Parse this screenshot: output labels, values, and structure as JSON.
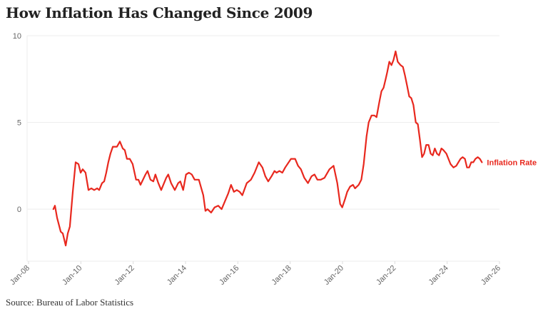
{
  "title": "How Inflation Has Changed Since 2009",
  "source": "Source: Bureau of Labor Statistics",
  "chart_data": {
    "type": "line",
    "title": "How Inflation Has Changed Since 2009",
    "xlabel": "",
    "ylabel": "",
    "ylim": [
      -3,
      10
    ],
    "xlim": [
      2008,
      2026
    ],
    "yticks": [
      {
        "v": 0,
        "label": "0"
      },
      {
        "v": 5,
        "label": "5"
      },
      {
        "v": 10,
        "label": "10"
      }
    ],
    "xticks": [
      {
        "v": 2008,
        "label": "Jan-08"
      },
      {
        "v": 2010,
        "label": "Jan-10"
      },
      {
        "v": 2012,
        "label": "Jan-12"
      },
      {
        "v": 2014,
        "label": "Jan-14"
      },
      {
        "v": 2016,
        "label": "Jan-16"
      },
      {
        "v": 2018,
        "label": "Jan-18"
      },
      {
        "v": 2020,
        "label": "Jan-20"
      },
      {
        "v": 2022,
        "label": "Jan-22"
      },
      {
        "v": 2024,
        "label": "Jan-24"
      },
      {
        "v": 2026,
        "label": "Jan-26"
      }
    ],
    "grid": true,
    "legend": "inline-right",
    "series": [
      {
        "name": "Inflation Rate",
        "color": "#e8281e",
        "x_base_year": 2008,
        "x": [
          0.95,
          1.01,
          1.09,
          1.23,
          1.31,
          1.42,
          1.5,
          1.58,
          1.69,
          1.8,
          1.91,
          1.99,
          2.07,
          2.18,
          2.29,
          2.4,
          2.51,
          2.62,
          2.7,
          2.81,
          2.89,
          2.97,
          3.05,
          3.13,
          3.22,
          3.3,
          3.38,
          3.49,
          3.6,
          3.68,
          3.76,
          3.87,
          3.98,
          4.11,
          4.2,
          4.28,
          4.47,
          4.55,
          4.66,
          4.77,
          4.85,
          4.96,
          5.07,
          5.18,
          5.26,
          5.34,
          5.45,
          5.59,
          5.72,
          5.8,
          5.91,
          6.02,
          6.13,
          6.24,
          6.35,
          6.51,
          6.68,
          6.76,
          6.84,
          6.98,
          7.11,
          7.25,
          7.38,
          7.52,
          7.63,
          7.74,
          7.85,
          7.96,
          8.07,
          8.17,
          8.34,
          8.5,
          8.64,
          8.8,
          8.94,
          9.05,
          9.16,
          9.29,
          9.4,
          9.48,
          9.59,
          9.7,
          9.81,
          10.03,
          10.19,
          10.3,
          10.41,
          10.54,
          10.68,
          10.82,
          10.93,
          11.04,
          11.17,
          11.31,
          11.5,
          11.66,
          11.8,
          11.91,
          11.99,
          12.1,
          12.18,
          12.29,
          12.4,
          12.48,
          12.62,
          12.72,
          12.81,
          12.92,
          13.0,
          13.11,
          13.22,
          13.3,
          13.41,
          13.49,
          13.57,
          13.65,
          13.71,
          13.79,
          13.87,
          13.95,
          14.03,
          14.11,
          14.22,
          14.31,
          14.39,
          14.47,
          14.55,
          14.63,
          14.71,
          14.8,
          14.88,
          14.96,
          15.04,
          15.12,
          15.2,
          15.29,
          15.37,
          15.45,
          15.53,
          15.61,
          15.69,
          15.78,
          15.86,
          15.97,
          16.05,
          16.13,
          16.24,
          16.35,
          16.43,
          16.51,
          16.59,
          16.68,
          16.76,
          16.84,
          16.92,
          17.0,
          17.08,
          17.17,
          17.25,
          17.33
        ],
        "values": [
          0.0,
          0.2,
          -0.5,
          -1.3,
          -1.4,
          -2.1,
          -1.4,
          -1.0,
          1.0,
          2.7,
          2.6,
          2.1,
          2.3,
          2.1,
          1.1,
          1.2,
          1.1,
          1.2,
          1.1,
          1.5,
          1.6,
          2.1,
          2.7,
          3.2,
          3.6,
          3.6,
          3.6,
          3.9,
          3.5,
          3.4,
          2.9,
          2.9,
          2.6,
          1.7,
          1.7,
          1.4,
          2.0,
          2.2,
          1.7,
          1.6,
          2.0,
          1.5,
          1.1,
          1.5,
          1.8,
          2.0,
          1.5,
          1.1,
          1.5,
          1.6,
          1.1,
          2.0,
          2.1,
          2.0,
          1.7,
          1.7,
          0.8,
          -0.1,
          0.0,
          -0.2,
          0.1,
          0.2,
          0.0,
          0.5,
          0.9,
          1.4,
          1.0,
          1.1,
          1.0,
          0.8,
          1.5,
          1.7,
          2.1,
          2.7,
          2.4,
          1.9,
          1.6,
          1.9,
          2.2,
          2.1,
          2.2,
          2.1,
          2.4,
          2.9,
          2.9,
          2.5,
          2.3,
          1.8,
          1.5,
          1.9,
          2.0,
          1.7,
          1.7,
          1.8,
          2.3,
          2.5,
          1.5,
          0.3,
          0.1,
          0.6,
          1.0,
          1.3,
          1.4,
          1.2,
          1.4,
          1.7,
          2.6,
          4.2,
          5.0,
          5.4,
          5.4,
          5.3,
          6.2,
          6.8,
          7.0,
          7.5,
          7.9,
          8.5,
          8.3,
          8.6,
          9.1,
          8.5,
          8.3,
          8.2,
          7.7,
          7.1,
          6.5,
          6.4,
          6.0,
          5.0,
          4.9,
          4.0,
          3.0,
          3.2,
          3.7,
          3.7,
          3.2,
          3.1,
          3.5,
          3.2,
          3.1,
          3.5,
          3.4,
          3.2,
          2.9,
          2.6,
          2.4,
          2.5,
          2.7,
          2.9,
          3.0,
          2.9,
          2.4,
          2.4,
          2.7,
          2.7,
          2.9,
          3.0,
          2.9,
          2.7
        ]
      }
    ]
  }
}
